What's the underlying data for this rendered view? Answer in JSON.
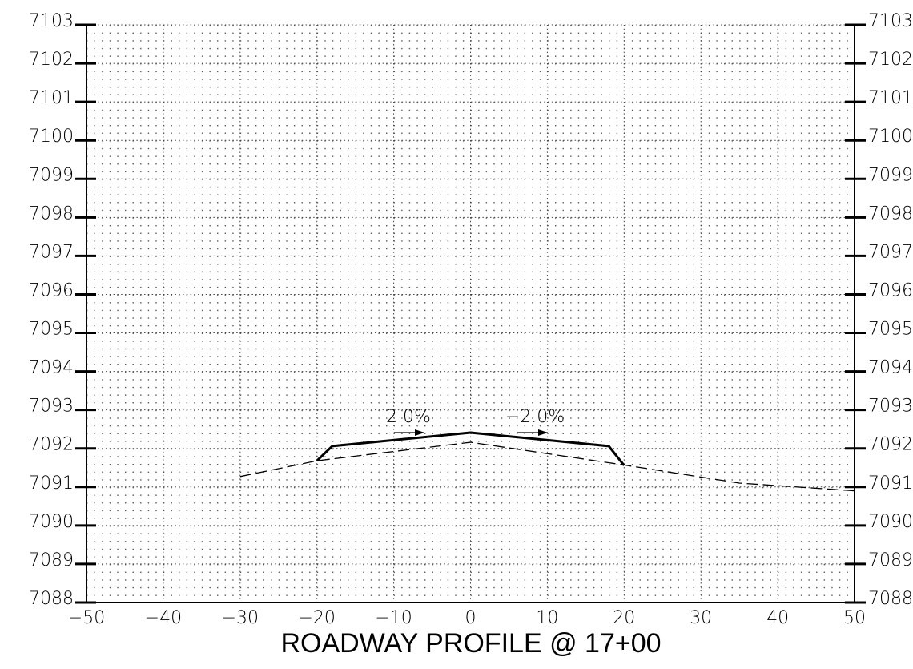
{
  "chart_data": {
    "type": "line",
    "title": "ROADWAY PROFILE @ 17+00",
    "annotations": [
      "2.0%",
      "−2.0%"
    ],
    "series": [
      {
        "color": "#000000",
        "style": "solid",
        "x": [
          -20,
          -18,
          0,
          18,
          20
        ],
        "values": [
          7091.68,
          7092.06,
          7092.41,
          7092.06,
          7091.56
        ]
      },
      {
        "color": "#000000",
        "style": "dashed",
        "x": [
          -30,
          -20,
          0,
          20,
          35,
          50
        ],
        "values": [
          7091.27,
          7091.68,
          7092.16,
          7091.57,
          7091.1,
          7090.9
        ]
      }
    ],
    "xlim": [
      -50,
      50
    ],
    "xticks": [
      {
        "value": -50,
        "label": "−50"
      },
      {
        "value": -40,
        "label": "−40"
      },
      {
        "value": -30,
        "label": "−30"
      },
      {
        "value": -20,
        "label": "−20"
      },
      {
        "value": -10,
        "label": "−10"
      },
      0,
      10,
      20,
      30,
      40,
      50
    ],
    "ylim": [
      7088,
      7103
    ],
    "yticks": [
      7088,
      7089,
      7090,
      7091,
      7092,
      7093,
      7094,
      7095,
      7096,
      7097,
      7098,
      7099,
      7100,
      7101,
      7102,
      7103
    ],
    "grid": true
  }
}
